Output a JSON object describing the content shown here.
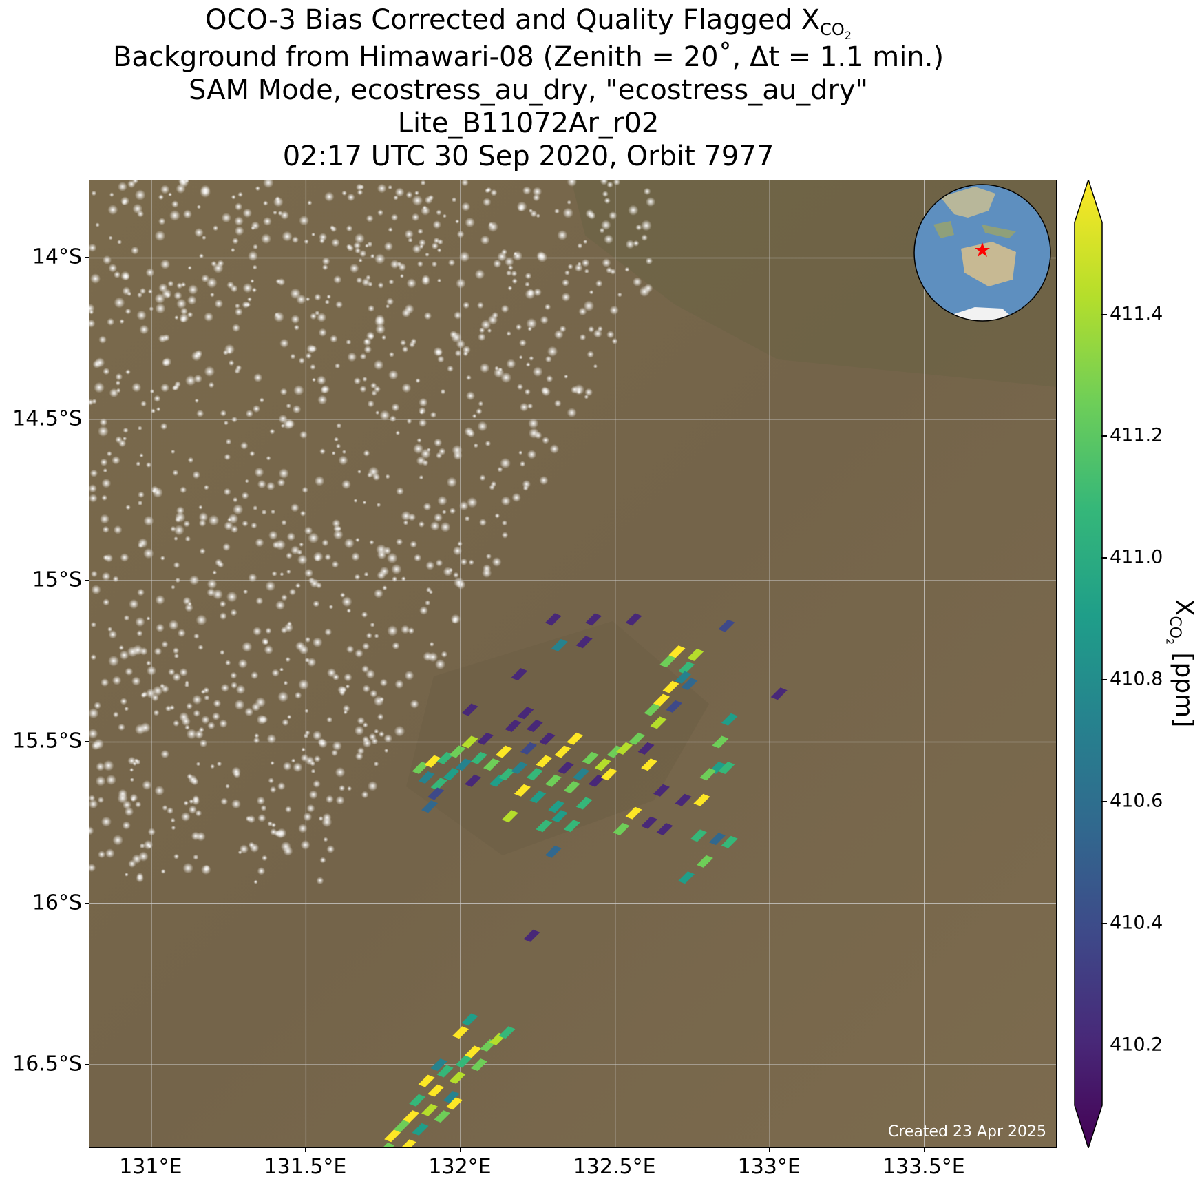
{
  "title": {
    "line1_prefix": "OCO-3 Bias Corrected and Quality Flagged X",
    "line1_sub": "CO",
    "line1_sub2": "2",
    "line2": "Background from Himawari-08 (Zenith = 20$^\\circ$, Δt =  1.1 min.)",
    "line2_display": "Background from Himawari-08 (Zenith = 20˚, Δt =  1.1 min.)",
    "line3": "SAM Mode, ecostress_au_dry, \"ecostress_au_dry\"",
    "line4": "Lite_B11072Ar_r02",
    "line5": "02:17 UTC 30 Sep 2020, Orbit 7977"
  },
  "credit": "Created 23 Apr 2025",
  "colorbar": {
    "label_prefix": "X",
    "label_sub": "CO",
    "label_sub2": "2",
    "label_suffix": " [ppm]",
    "ticks": [
      "410.2",
      "410.4",
      "410.6",
      "410.8",
      "411.0",
      "411.2",
      "411.4"
    ],
    "range": [
      410.1,
      411.55
    ],
    "colors": [
      "#440154",
      "#482878",
      "#3e4989",
      "#31688e",
      "#26828e",
      "#1f9e89",
      "#35b779",
      "#6ece58",
      "#b5de2b",
      "#fde725"
    ]
  },
  "axes": {
    "lon_ticks": [
      "131°E",
      "131.5°E",
      "132°E",
      "132.5°E",
      "133°E",
      "133.5°E"
    ],
    "lat_ticks": [
      "14°S",
      "14.5°S",
      "15°S",
      "15.5°S",
      "16°S",
      "16.5°S"
    ],
    "lon_range": [
      130.8,
      133.93
    ],
    "lat_range": [
      -13.76,
      -16.76
    ]
  },
  "map_colors": {
    "land": "#75664a",
    "cloud": "#d8d8d8",
    "ocean_inset": "#5e8fbf",
    "target_star": "#ff0000"
  },
  "chart_data": {
    "type": "scatter",
    "xlabel": "",
    "ylabel": "",
    "colorbar_label": "XCO2 [ppm]",
    "xlim": [
      130.8,
      133.93
    ],
    "ylim": [
      -16.76,
      -13.76
    ],
    "points": [
      [
        131.87,
        -15.58,
        411.3
      ],
      [
        131.89,
        -15.61,
        410.7
      ],
      [
        131.91,
        -15.56,
        411.5
      ],
      [
        131.93,
        -15.63,
        411.0
      ],
      [
        131.95,
        -15.55,
        411.1
      ],
      [
        131.92,
        -15.66,
        410.5
      ],
      [
        131.9,
        -15.7,
        410.6
      ],
      [
        131.97,
        -15.6,
        410.9
      ],
      [
        131.99,
        -15.53,
        411.3
      ],
      [
        132.01,
        -15.57,
        410.8
      ],
      [
        132.03,
        -15.5,
        411.4
      ],
      [
        132.04,
        -15.62,
        410.3
      ],
      [
        132.06,
        -15.55,
        411.0
      ],
      [
        132.08,
        -15.49,
        410.2
      ],
      [
        132.1,
        -15.57,
        411.2
      ],
      [
        132.12,
        -15.62,
        410.9
      ],
      [
        132.14,
        -15.53,
        411.5
      ],
      [
        132.15,
        -15.6,
        411.0
      ],
      [
        132.17,
        -15.45,
        410.2
      ],
      [
        132.19,
        -15.58,
        410.8
      ],
      [
        132.2,
        -15.65,
        411.5
      ],
      [
        132.22,
        -15.52,
        410.4
      ],
      [
        132.24,
        -15.6,
        411.1
      ],
      [
        132.25,
        -15.67,
        410.9
      ],
      [
        132.27,
        -15.56,
        411.5
      ],
      [
        132.28,
        -15.49,
        410.3
      ],
      [
        132.3,
        -15.62,
        411.2
      ],
      [
        132.31,
        -15.7,
        410.9
      ],
      [
        132.33,
        -15.53,
        411.5
      ],
      [
        132.34,
        -15.58,
        410.2
      ],
      [
        132.36,
        -15.64,
        411.2
      ],
      [
        132.37,
        -15.49,
        411.5
      ],
      [
        132.39,
        -15.6,
        410.8
      ],
      [
        132.4,
        -15.69,
        411.1
      ],
      [
        132.42,
        -15.55,
        411.3
      ],
      [
        132.44,
        -15.62,
        410.2
      ],
      [
        132.46,
        -15.57,
        411.4
      ],
      [
        132.48,
        -15.6,
        411.5
      ],
      [
        132.5,
        -15.53,
        411.2
      ],
      [
        132.53,
        -15.52,
        411.4
      ],
      [
        132.27,
        -15.76,
        411.0
      ],
      [
        132.32,
        -15.73,
        410.9
      ],
      [
        132.36,
        -15.76,
        411.0
      ],
      [
        132.16,
        -15.73,
        411.4
      ],
      [
        132.21,
        -15.41,
        410.2
      ],
      [
        132.19,
        -15.29,
        410.2
      ],
      [
        132.24,
        -15.45,
        410.2
      ],
      [
        132.03,
        -15.4,
        410.3
      ],
      [
        132.32,
        -15.2,
        410.8
      ],
      [
        132.4,
        -15.19,
        410.2
      ],
      [
        132.3,
        -15.12,
        410.2
      ],
      [
        132.43,
        -15.12,
        410.2
      ],
      [
        132.56,
        -15.12,
        410.2
      ],
      [
        132.67,
        -15.25,
        411.3
      ],
      [
        132.7,
        -15.22,
        411.5
      ],
      [
        132.73,
        -15.27,
        411.1
      ],
      [
        132.76,
        -15.23,
        411.4
      ],
      [
        132.72,
        -15.3,
        410.8
      ],
      [
        132.68,
        -15.33,
        411.5
      ],
      [
        132.74,
        -15.32,
        410.6
      ],
      [
        132.65,
        -15.37,
        411.5
      ],
      [
        132.62,
        -15.4,
        411.2
      ],
      [
        132.69,
        -15.39,
        410.5
      ],
      [
        132.86,
        -15.14,
        410.5
      ],
      [
        132.87,
        -15.43,
        410.9
      ],
      [
        132.84,
        -15.5,
        411.2
      ],
      [
        132.83,
        -15.58,
        410.9
      ],
      [
        132.8,
        -15.6,
        411.3
      ],
      [
        132.86,
        -15.58,
        411.1
      ],
      [
        133.03,
        -15.35,
        410.2
      ],
      [
        132.6,
        -15.52,
        410.2
      ],
      [
        132.57,
        -15.49,
        411.2
      ],
      [
        132.65,
        -15.65,
        410.2
      ],
      [
        132.72,
        -15.68,
        410.2
      ],
      [
        132.78,
        -15.68,
        411.5
      ],
      [
        132.56,
        -15.72,
        411.5
      ],
      [
        132.61,
        -15.75,
        410.2
      ],
      [
        132.66,
        -15.77,
        410.3
      ],
      [
        132.52,
        -15.77,
        411.2
      ],
      [
        132.77,
        -15.79,
        411.0
      ],
      [
        132.83,
        -15.8,
        410.6
      ],
      [
        132.87,
        -15.81,
        411.0
      ],
      [
        132.79,
        -15.87,
        411.3
      ],
      [
        132.3,
        -15.84,
        410.6
      ],
      [
        132.23,
        -16.1,
        410.2
      ],
      [
        132.73,
        -15.92,
        410.9
      ],
      [
        132.61,
        -15.57,
        411.5
      ],
      [
        132.64,
        -15.44,
        411.4
      ],
      [
        131.78,
        -16.72,
        411.5
      ],
      [
        131.81,
        -16.69,
        411.3
      ],
      [
        131.84,
        -16.66,
        411.5
      ],
      [
        131.87,
        -16.7,
        410.9
      ],
      [
        131.9,
        -16.64,
        411.4
      ],
      [
        131.86,
        -16.61,
        411.0
      ],
      [
        131.92,
        -16.58,
        411.5
      ],
      [
        131.94,
        -16.66,
        411.2
      ],
      [
        131.97,
        -16.6,
        410.7
      ],
      [
        131.89,
        -16.55,
        411.5
      ],
      [
        131.95,
        -16.52,
        411.1
      ],
      [
        131.99,
        -16.54,
        411.4
      ],
      [
        132.01,
        -16.49,
        411.0
      ],
      [
        132.04,
        -16.46,
        411.5
      ],
      [
        132.06,
        -16.5,
        411.3
      ],
      [
        132.09,
        -16.44,
        411.2
      ],
      [
        132.12,
        -16.42,
        411.4
      ],
      [
        132.15,
        -16.4,
        411.0
      ],
      [
        132.0,
        -16.4,
        411.5
      ],
      [
        132.03,
        -16.36,
        410.9
      ],
      [
        131.83,
        -16.75,
        411.5
      ],
      [
        131.76,
        -16.76,
        411.3
      ],
      [
        131.93,
        -16.5,
        410.8
      ],
      [
        131.98,
        -16.62,
        411.5
      ]
    ]
  }
}
